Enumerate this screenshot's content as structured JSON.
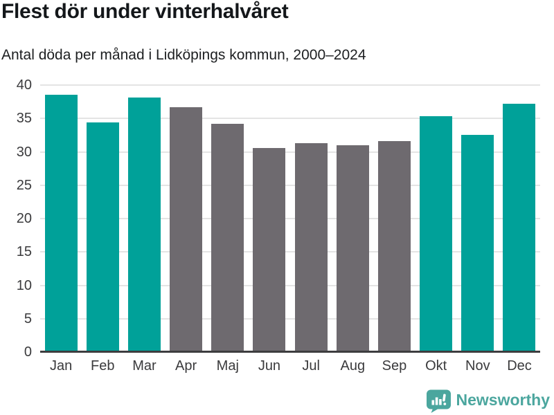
{
  "header": {
    "title": "Flest dör under vinterhalvåret",
    "subtitle": "Antal döda per månad i Lidköpings kommun, 2000–2024"
  },
  "chart_data": {
    "type": "bar",
    "title": "Flest dör under vinterhalvåret",
    "subtitle": "Antal döda per månad i Lidköpings kommun, 2000–2024",
    "categories": [
      "Jan",
      "Feb",
      "Mar",
      "Apr",
      "Maj",
      "Jun",
      "Jul",
      "Aug",
      "Sep",
      "Okt",
      "Nov",
      "Dec"
    ],
    "values": [
      38.6,
      34.4,
      38.1,
      36.7,
      34.2,
      30.6,
      31.3,
      31.0,
      31.6,
      35.3,
      32.5,
      37.2
    ],
    "bar_colors": [
      "#00a199",
      "#00a199",
      "#00a199",
      "#6e6a6f",
      "#6e6a6f",
      "#6e6a6f",
      "#6e6a6f",
      "#6e6a6f",
      "#6e6a6f",
      "#00a199",
      "#00a199",
      "#00a199"
    ],
    "xlabel": "",
    "ylabel": "",
    "ylim": [
      0,
      40
    ],
    "yticks": [
      0,
      5,
      10,
      15,
      20,
      25,
      30,
      35,
      40
    ],
    "grid": "horizontal",
    "legend": "none"
  },
  "colors": {
    "winter_bar": "#00a199",
    "summer_bar": "#6e6a6f",
    "gridline": "#e4e4e4",
    "axis_line": "#3d3d3f",
    "tick_text": "#3a3a3c",
    "title_text": "#14171a",
    "brand_teal": "#4ba69e"
  },
  "footer": {
    "brand": "Newsworthy",
    "logo_icon": "speech-bubble-bar-chart-icon"
  }
}
